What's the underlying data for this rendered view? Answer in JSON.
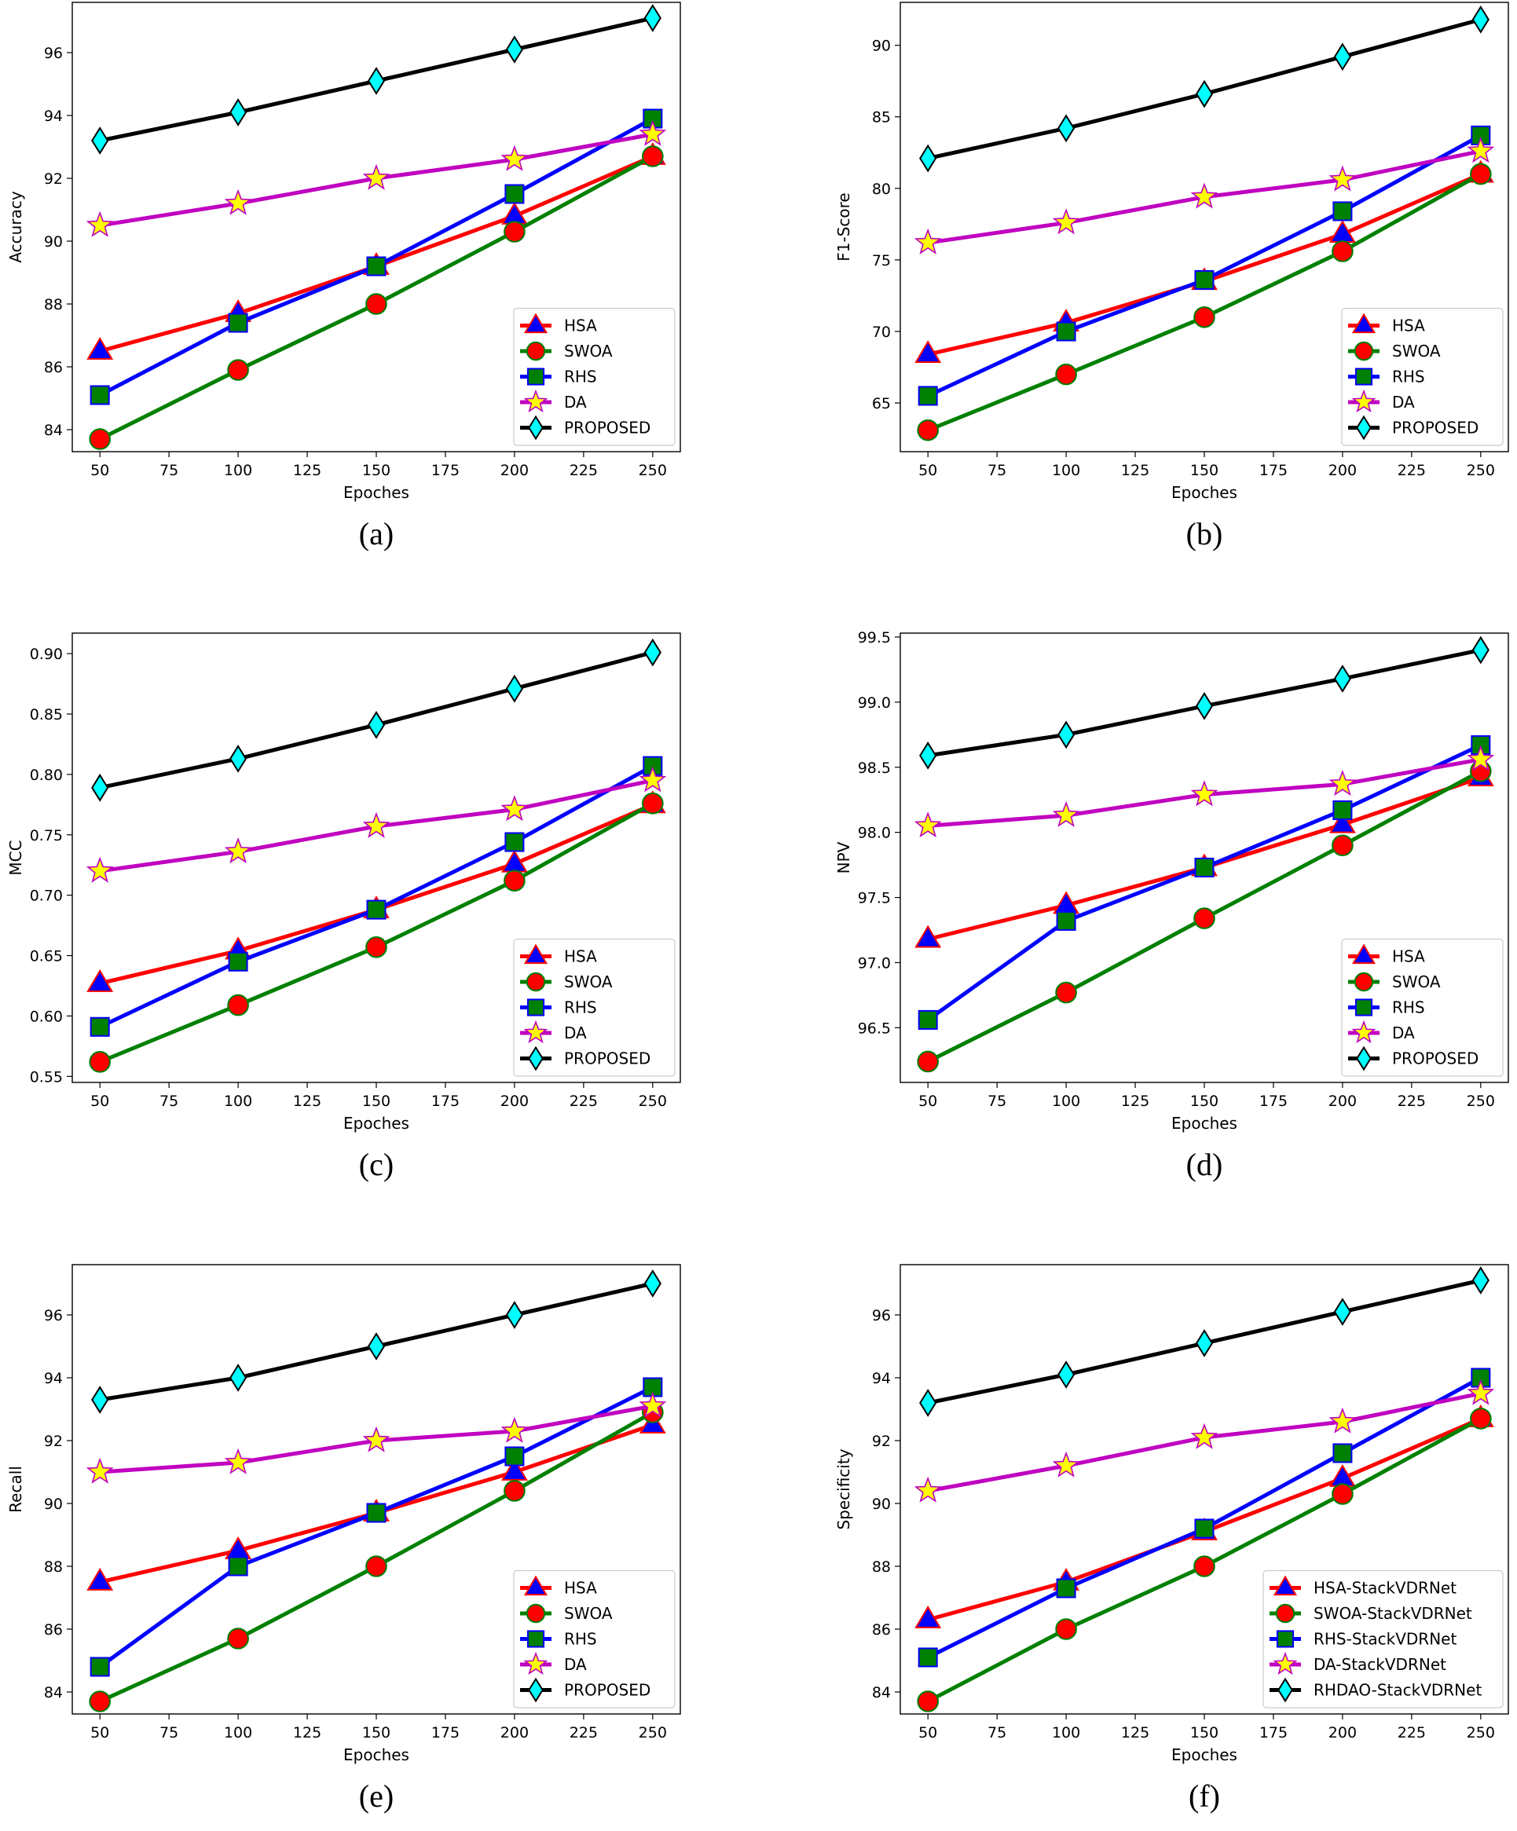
{
  "chart_data": [
    {
      "type": "line",
      "caption": "(a)",
      "xlabel": "Epoches",
      "ylabel": "Accuracy",
      "x": [
        50,
        100,
        150,
        200,
        250
      ],
      "xlim": [
        40,
        260
      ],
      "xticks": [
        50,
        75,
        100,
        125,
        150,
        175,
        200,
        225,
        250
      ],
      "ylim": [
        83.3,
        97.6
      ],
      "yticks": [
        84,
        86,
        88,
        90,
        92,
        94,
        96
      ],
      "grid": false,
      "legend_position": "lower-right",
      "series": [
        {
          "name": "HSA",
          "values": [
            86.5,
            87.7,
            89.2,
            90.8,
            92.7
          ]
        },
        {
          "name": "SWOA",
          "values": [
            83.7,
            85.9,
            88.0,
            90.3,
            92.7
          ]
        },
        {
          "name": "RHS",
          "values": [
            85.1,
            87.4,
            89.2,
            91.5,
            93.9
          ]
        },
        {
          "name": "DA",
          "values": [
            90.5,
            91.2,
            92.0,
            92.6,
            93.4
          ]
        },
        {
          "name": "PROPOSED",
          "values": [
            93.2,
            94.1,
            95.1,
            96.1,
            97.1
          ]
        }
      ]
    },
    {
      "type": "line",
      "caption": "(b)",
      "xlabel": "Epoches",
      "ylabel": "F1-Score",
      "x": [
        50,
        100,
        150,
        200,
        250
      ],
      "xlim": [
        40,
        260
      ],
      "xticks": [
        50,
        75,
        100,
        125,
        150,
        175,
        200,
        225,
        250
      ],
      "ylim": [
        61.6,
        93.0
      ],
      "yticks": [
        65,
        70,
        75,
        80,
        85,
        90
      ],
      "grid": false,
      "legend_position": "lower-right",
      "series": [
        {
          "name": "HSA",
          "values": [
            68.4,
            70.6,
            73.5,
            76.8,
            81.0
          ]
        },
        {
          "name": "SWOA",
          "values": [
            63.1,
            67.0,
            71.0,
            75.6,
            81.0
          ]
        },
        {
          "name": "RHS",
          "values": [
            65.5,
            70.0,
            73.6,
            78.4,
            83.7
          ]
        },
        {
          "name": "DA",
          "values": [
            76.2,
            77.6,
            79.4,
            80.6,
            82.6
          ]
        },
        {
          "name": "PROPOSED",
          "values": [
            82.1,
            84.2,
            86.6,
            89.2,
            91.8
          ]
        }
      ]
    },
    {
      "type": "line",
      "caption": "(c)",
      "xlabel": "Epoches",
      "ylabel": "MCC",
      "x": [
        50,
        100,
        150,
        200,
        250
      ],
      "xlim": [
        40,
        260
      ],
      "xticks": [
        50,
        75,
        100,
        125,
        150,
        175,
        200,
        225,
        250
      ],
      "ylim": [
        0.545,
        0.917
      ],
      "yticks": [
        0.55,
        0.6,
        0.65,
        0.7,
        0.75,
        0.8,
        0.85,
        0.9
      ],
      "tick_labels": [
        "0.55",
        "0.60",
        "0.65",
        "0.70",
        "0.75",
        "0.80",
        "0.85",
        "0.90"
      ],
      "grid": false,
      "legend_position": "lower-right",
      "series": [
        {
          "name": "HSA",
          "values": [
            0.627,
            0.654,
            0.688,
            0.726,
            0.775
          ]
        },
        {
          "name": "SWOA",
          "values": [
            0.562,
            0.609,
            0.657,
            0.712,
            0.776
          ]
        },
        {
          "name": "RHS",
          "values": [
            0.591,
            0.645,
            0.688,
            0.744,
            0.807
          ]
        },
        {
          "name": "DA",
          "values": [
            0.72,
            0.736,
            0.757,
            0.771,
            0.795
          ]
        },
        {
          "name": "PROPOSED",
          "values": [
            0.789,
            0.813,
            0.841,
            0.871,
            0.901
          ]
        }
      ]
    },
    {
      "type": "line",
      "caption": "(d)",
      "xlabel": "Epoches",
      "ylabel": "NPV",
      "x": [
        50,
        100,
        150,
        200,
        250
      ],
      "xlim": [
        40,
        260
      ],
      "xticks": [
        50,
        75,
        100,
        125,
        150,
        175,
        200,
        225,
        250
      ],
      "ylim": [
        96.08,
        99.53
      ],
      "yticks": [
        96.5,
        97.0,
        97.5,
        98.0,
        98.5,
        99.0,
        99.5
      ],
      "tick_labels": [
        "96.5",
        "97.0",
        "97.5",
        "98.0",
        "98.5",
        "99.0",
        "99.5"
      ],
      "grid": false,
      "legend_position": "lower-right",
      "series": [
        {
          "name": "HSA",
          "values": [
            97.18,
            97.44,
            97.73,
            98.06,
            98.42
          ]
        },
        {
          "name": "SWOA",
          "values": [
            96.24,
            96.77,
            97.34,
            97.9,
            98.47
          ]
        },
        {
          "name": "RHS",
          "values": [
            96.56,
            97.32,
            97.73,
            98.17,
            98.67
          ]
        },
        {
          "name": "DA",
          "values": [
            98.05,
            98.13,
            98.29,
            98.37,
            98.56
          ]
        },
        {
          "name": "PROPOSED",
          "values": [
            98.59,
            98.75,
            98.97,
            99.18,
            99.4
          ]
        }
      ]
    },
    {
      "type": "line",
      "caption": "(e)",
      "xlabel": "Epoches",
      "ylabel": "Recall",
      "x": [
        50,
        100,
        150,
        200,
        250
      ],
      "xlim": [
        40,
        260
      ],
      "xticks": [
        50,
        75,
        100,
        125,
        150,
        175,
        200,
        225,
        250
      ],
      "ylim": [
        83.3,
        97.6
      ],
      "yticks": [
        84,
        86,
        88,
        90,
        92,
        94,
        96
      ],
      "grid": false,
      "legend_position": "lower-right",
      "series": [
        {
          "name": "HSA",
          "values": [
            87.5,
            88.5,
            89.7,
            91.0,
            92.5
          ]
        },
        {
          "name": "SWOA",
          "values": [
            83.7,
            85.7,
            88.0,
            90.4,
            92.9
          ]
        },
        {
          "name": "RHS",
          "values": [
            84.8,
            88.0,
            89.7,
            91.5,
            93.7
          ]
        },
        {
          "name": "DA",
          "values": [
            91.0,
            91.3,
            92.0,
            92.3,
            93.1
          ]
        },
        {
          "name": "PROPOSED",
          "values": [
            93.3,
            94.0,
            95.0,
            96.0,
            97.0
          ]
        }
      ]
    },
    {
      "type": "line",
      "caption": "(f)",
      "xlabel": "Epoches",
      "ylabel": "Specificity",
      "x": [
        50,
        100,
        150,
        200,
        250
      ],
      "xlim": [
        40,
        260
      ],
      "xticks": [
        50,
        75,
        100,
        125,
        150,
        175,
        200,
        225,
        250
      ],
      "ylim": [
        83.3,
        97.6
      ],
      "yticks": [
        84,
        86,
        88,
        90,
        92,
        94,
        96
      ],
      "grid": false,
      "legend_position": "lower-right",
      "series": [
        {
          "name": "HSA-StackVDRNet",
          "values": [
            86.3,
            87.5,
            89.1,
            90.8,
            92.7
          ]
        },
        {
          "name": "SWOA-StackVDRNet",
          "values": [
            83.7,
            86.0,
            88.0,
            90.3,
            92.7
          ]
        },
        {
          "name": "RHS-StackVDRNet",
          "values": [
            85.1,
            87.3,
            89.2,
            91.6,
            94.0
          ]
        },
        {
          "name": "DA-StackVDRNet",
          "values": [
            90.4,
            91.2,
            92.1,
            92.6,
            93.5
          ]
        },
        {
          "name": "RHDAO-StackVDRNet",
          "values": [
            93.2,
            94.1,
            95.1,
            96.1,
            97.1
          ]
        }
      ]
    }
  ],
  "series_styles": [
    {
      "line": "#ff0000",
      "face": "#0000ff",
      "edge": "#ff0000",
      "marker": "triangle"
    },
    {
      "line": "#008000",
      "face": "#ff0000",
      "edge": "#008000",
      "marker": "circle"
    },
    {
      "line": "#0000ff",
      "face": "#008000",
      "edge": "#0000ff",
      "marker": "square"
    },
    {
      "line": "#c000c0",
      "face": "#ffff00",
      "edge": "#c000c0",
      "marker": "star"
    },
    {
      "line": "#000000",
      "face": "#00ffff",
      "edge": "#000000",
      "marker": "diamond"
    }
  ]
}
